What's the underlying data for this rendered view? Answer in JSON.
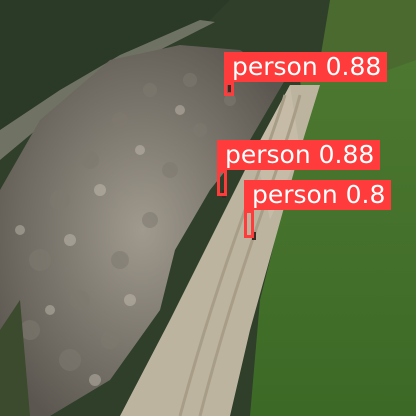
{
  "detections": [
    {
      "label": "person 0.88",
      "class": "person",
      "confidence": 0.88
    },
    {
      "label": "person 0.88",
      "class": "person",
      "confidence": 0.88
    },
    {
      "label": "person 0.8",
      "class": "person",
      "confidence": 0.8
    }
  ],
  "colors": {
    "box": "#ff3b3b",
    "label_text": "#ffffff"
  }
}
